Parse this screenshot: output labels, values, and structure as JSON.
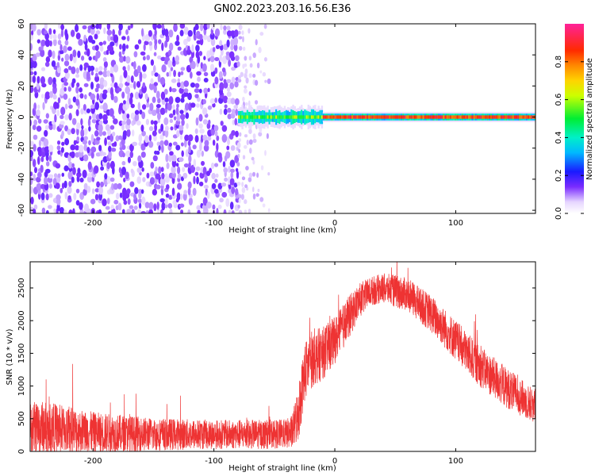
{
  "chart_data": [
    {
      "type": "heatmap",
      "title": "GN02.2023.203.16.56.E36",
      "xlabel": "Height of straight line (km)",
      "ylabel": "Frequency (Hz)",
      "xlim": [
        -252,
        166
      ],
      "ylim": [
        -62,
        60
      ],
      "x_ticks": [
        -200,
        -100,
        0,
        100
      ],
      "y_ticks": [
        -60,
        -40,
        -20,
        0,
        20,
        40,
        60
      ],
      "colorbar": {
        "label": "Normalized spectral amplitude",
        "range": [
          0,
          1
        ],
        "ticks": [
          "0.0",
          "0.2",
          "0.4",
          "0.6",
          "0.8"
        ],
        "tick_values": [
          0.0,
          0.2,
          0.4,
          0.6,
          0.8
        ],
        "colormap": "hsv-like: white/purple (low) to blue, cyan, green, yellow, orange, red, magenta (high)"
      },
      "regions": [
        {
          "desc": "broadband noise",
          "x_range": [
            -252,
            -80
          ],
          "freq_range": [
            -62,
            60
          ],
          "amplitude": 0.1
        },
        {
          "desc": "fading noise",
          "x_range": [
            -80,
            -55
          ],
          "freq_range": [
            -62,
            60
          ],
          "amplitude": 0.05
        },
        {
          "desc": "narrow signal band near 0 Hz",
          "x_range": [
            -80,
            166
          ],
          "freq_range": [
            -2,
            2
          ],
          "amplitude_peak": 0.9
        }
      ]
    },
    {
      "type": "line",
      "xlabel": "Height of straight line (km)",
      "ylabel": "SNR (10 * v/v)",
      "xlim": [
        -252,
        166
      ],
      "ylim": [
        0,
        2900
      ],
      "x_ticks": [
        -200,
        -100,
        0,
        100
      ],
      "y_ticks": [
        0,
        500,
        1000,
        1500,
        2000,
        2500
      ],
      "line_color": "#ee3333",
      "series": [
        {
          "envelope_x": [
            -252,
            -240,
            -220,
            -200,
            -150,
            -100,
            -60,
            -40,
            -35,
            -30,
            -25,
            -20,
            -10,
            0,
            10,
            20,
            30,
            40,
            50,
            60,
            80,
            100,
            120,
            140,
            160,
            166
          ],
          "envelope_mean": [
            350,
            370,
            330,
            290,
            260,
            260,
            260,
            270,
            300,
            600,
            1200,
            1400,
            1500,
            1700,
            2000,
            2300,
            2450,
            2500,
            2450,
            2400,
            2100,
            1700,
            1300,
            1000,
            750,
            700
          ],
          "envelope_spread": [
            450,
            450,
            400,
            350,
            280,
            250,
            250,
            250,
            300,
            500,
            500,
            500,
            450,
            400,
            380,
            300,
            250,
            250,
            280,
            280,
            320,
            350,
            350,
            350,
            300,
            300
          ]
        }
      ]
    }
  ]
}
